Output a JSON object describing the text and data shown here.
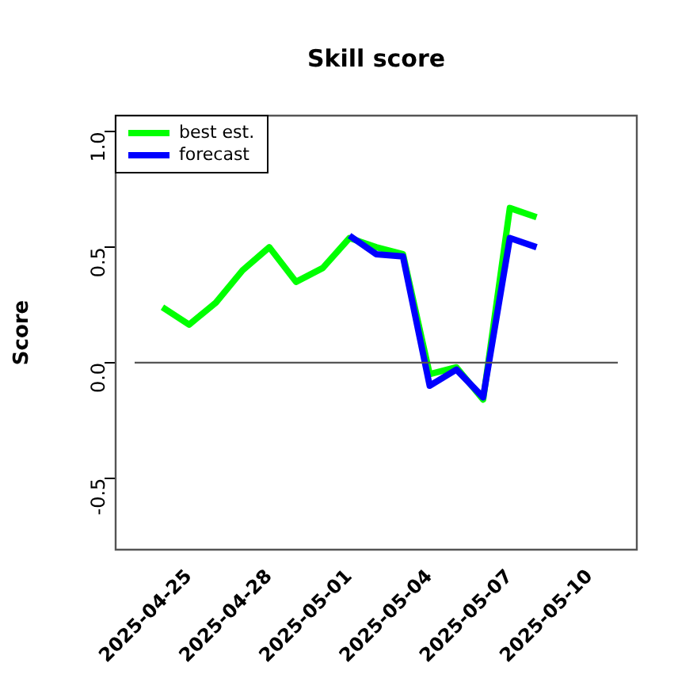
{
  "chart_data": {
    "type": "line",
    "title": "Skill score",
    "ylabel": "Score",
    "x": [
      "2025-04-24",
      "2025-04-25",
      "2025-04-26",
      "2025-04-27",
      "2025-04-28",
      "2025-04-29",
      "2025-04-30",
      "2025-05-01",
      "2025-05-02",
      "2025-05-03",
      "2025-05-04",
      "2025-05-05",
      "2025-05-06",
      "2025-05-07",
      "2025-05-08"
    ],
    "series": [
      {
        "name": "best est.",
        "color": "#00ff00",
        "values": [
          0.24,
          0.165,
          0.26,
          0.4,
          0.5,
          0.35,
          0.41,
          0.54,
          0.5,
          0.47,
          -0.05,
          -0.02,
          -0.16,
          0.67,
          0.63
        ]
      },
      {
        "name": "forecast",
        "color": "#0000ff",
        "values": [
          null,
          null,
          null,
          null,
          null,
          null,
          null,
          0.55,
          0.47,
          0.46,
          -0.1,
          -0.03,
          -0.15,
          0.54,
          0.5
        ]
      }
    ],
    "xlim": [
      "2025-04-22T06:00",
      "2025-05-11T18:00"
    ],
    "xticks": [
      "2025-04-25",
      "2025-04-28",
      "2025-05-01",
      "2025-05-04",
      "2025-05-07",
      "2025-05-10"
    ],
    "ylim": [
      -0.81,
      1.07
    ],
    "yticks": [
      -0.5,
      {
        "value": 0,
        "label": "0.0"
      },
      0.5,
      {
        "value": 1,
        "label": "1.0"
      }
    ],
    "ref_lines": [
      {
        "axis": "y",
        "value": 0,
        "color": "#555555"
      }
    ],
    "legend": "top left",
    "grid": false,
    "marker": "none",
    "line_style": "solid"
  }
}
